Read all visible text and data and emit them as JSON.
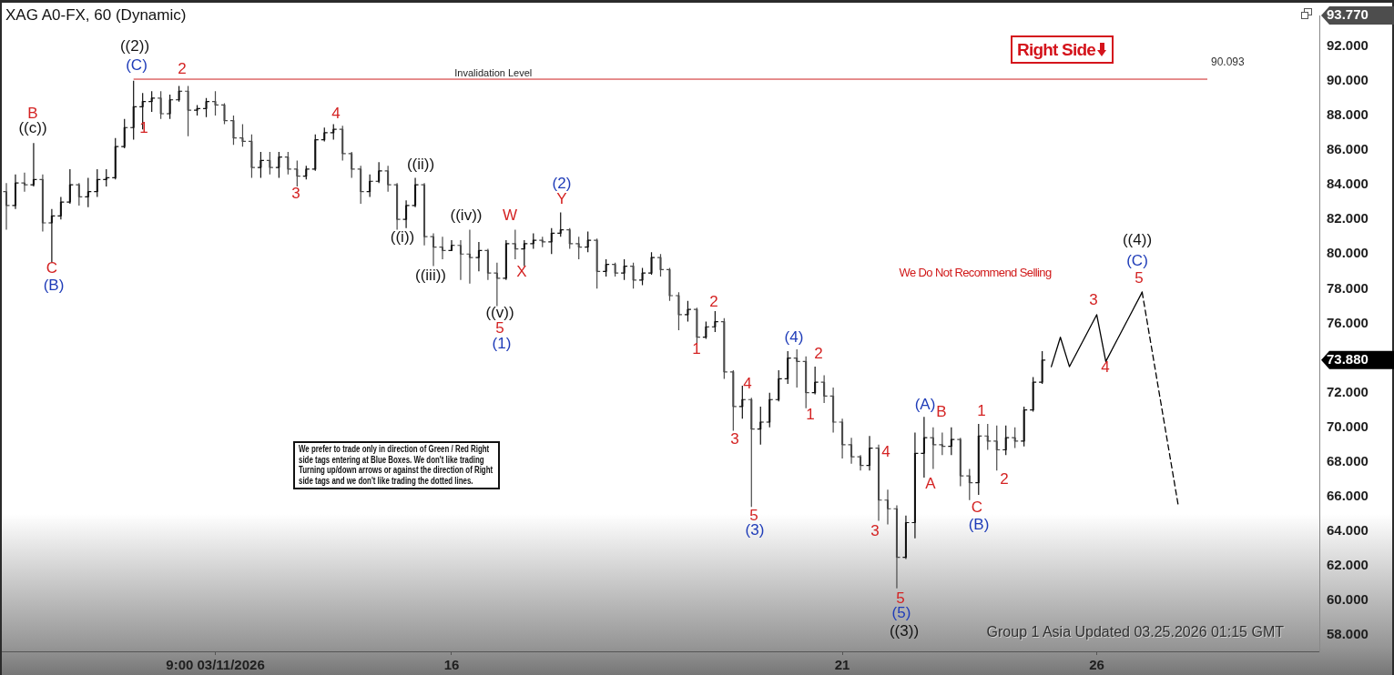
{
  "chart_data": {
    "type": "candlestick",
    "title": "XAG A0-FX, 60 (Dynamic)",
    "categories": [
      null,
      null,
      null,
      null,
      null,
      null,
      null,
      null,
      null,
      null,
      null,
      null,
      null,
      null,
      null,
      null,
      null,
      null,
      null,
      null,
      null,
      null,
      null,
      "9:00 03/11/2026",
      null,
      null,
      null,
      null,
      null,
      null,
      null,
      null,
      null,
      null,
      null,
      null,
      null,
      null,
      null,
      null,
      null,
      null,
      null,
      null,
      null,
      null,
      null,
      null,
      null,
      "16",
      null,
      null,
      null,
      null,
      null,
      null,
      null,
      null,
      null,
      null,
      null,
      null,
      null,
      null,
      null,
      null,
      null,
      null,
      null,
      null,
      null,
      null,
      null,
      null,
      null,
      null,
      null,
      null,
      null,
      null,
      null,
      null,
      null,
      null,
      null,
      null,
      null,
      null,
      null,
      null,
      null,
      null,
      "21",
      null,
      null,
      null,
      null,
      null,
      null,
      null,
      null,
      null,
      null,
      null,
      null,
      null,
      null,
      null,
      null,
      null,
      null,
      null,
      null,
      null,
      null,
      null,
      null,
      null,
      null,
      null,
      "26",
      null,
      null,
      null,
      null,
      null,
      null,
      null,
      null,
      null,
      null,
      null,
      null,
      null,
      null,
      null,
      null,
      null,
      null,
      null,
      null,
      null,
      null,
      null,
      null
    ],
    "ohlc": [
      [
        83.6,
        84.1,
        81.4,
        82.8
      ],
      [
        82.8,
        84.6,
        82.6,
        84.1
      ],
      [
        84.1,
        84.7,
        83.6,
        84.0
      ],
      [
        84.0,
        86.4,
        83.9,
        84.3
      ],
      [
        84.3,
        84.6,
        81.3,
        81.8
      ],
      [
        81.8,
        82.6,
        79.5,
        82.2
      ],
      [
        82.2,
        83.3,
        82.0,
        83.0
      ],
      [
        83.0,
        84.9,
        82.9,
        84.0
      ],
      [
        84.0,
        84.1,
        82.8,
        83.3
      ],
      [
        83.3,
        84.4,
        82.7,
        83.6
      ],
      [
        83.6,
        84.9,
        83.3,
        84.3
      ],
      [
        84.3,
        84.9,
        83.9,
        84.4
      ],
      [
        84.4,
        86.7,
        84.3,
        86.2
      ],
      [
        86.2,
        87.8,
        86.1,
        87.3
      ],
      [
        87.3,
        90.0,
        86.6,
        88.5
      ],
      [
        88.5,
        89.3,
        87.2,
        88.8
      ],
      [
        88.8,
        89.4,
        88.2,
        89.0
      ],
      [
        89.0,
        89.4,
        87.8,
        88.1
      ],
      [
        88.1,
        89.2,
        87.8,
        88.9
      ],
      [
        88.9,
        89.7,
        88.8,
        89.4
      ],
      [
        89.4,
        89.7,
        86.8,
        88.3
      ],
      [
        88.3,
        88.6,
        88.0,
        88.4
      ],
      [
        88.4,
        89.0,
        87.9,
        88.8
      ],
      [
        88.8,
        89.4,
        88.0,
        88.6
      ],
      [
        88.6,
        88.7,
        87.5,
        87.7
      ],
      [
        87.7,
        88.0,
        86.3,
        86.7
      ],
      [
        86.7,
        87.5,
        86.2,
        86.5
      ],
      [
        86.5,
        86.9,
        84.4,
        85.0
      ],
      [
        85.0,
        85.9,
        84.4,
        85.4
      ],
      [
        85.4,
        85.9,
        84.6,
        85.0
      ],
      [
        85.0,
        85.9,
        84.4,
        85.6
      ],
      [
        85.6,
        85.9,
        84.6,
        84.9
      ],
      [
        84.9,
        85.4,
        83.9,
        84.5
      ],
      [
        84.5,
        85.1,
        84.3,
        84.9
      ],
      [
        84.9,
        86.9,
        84.8,
        86.6
      ],
      [
        86.6,
        87.3,
        86.5,
        87.0
      ],
      [
        87.0,
        87.5,
        86.6,
        87.2
      ],
      [
        87.2,
        87.4,
        85.4,
        85.8
      ],
      [
        85.8,
        85.9,
        84.4,
        84.9
      ],
      [
        84.9,
        85.1,
        82.9,
        83.6
      ],
      [
        83.6,
        84.6,
        83.3,
        84.2
      ],
      [
        84.2,
        85.3,
        84.1,
        84.8
      ],
      [
        84.8,
        85.1,
        83.6,
        84.0
      ],
      [
        84.0,
        84.1,
        81.4,
        82.0
      ],
      [
        82.0,
        83.1,
        81.5,
        82.8
      ],
      [
        82.8,
        84.4,
        82.7,
        84.0
      ],
      [
        84.0,
        84.1,
        80.5,
        81.0
      ],
      [
        81.0,
        81.2,
        79.3,
        80.4
      ],
      [
        80.4,
        81.0,
        79.7,
        80.2
      ],
      [
        80.2,
        80.8,
        80.2,
        80.5
      ],
      [
        80.5,
        80.8,
        78.5,
        80.0
      ],
      [
        80.0,
        81.4,
        78.3,
        79.8
      ],
      [
        79.8,
        80.7,
        79.0,
        80.2
      ],
      [
        80.2,
        80.3,
        78.5,
        78.9
      ],
      [
        78.9,
        79.5,
        77.0,
        78.6
      ],
      [
        78.6,
        80.8,
        78.5,
        80.6
      ],
      [
        80.6,
        81.4,
        79.7,
        80.3
      ],
      [
        80.3,
        80.8,
        79.3,
        80.6
      ],
      [
        80.6,
        81.2,
        80.3,
        80.8
      ],
      [
        80.8,
        81.0,
        80.4,
        80.7
      ],
      [
        80.7,
        81.5,
        80.0,
        81.2
      ],
      [
        81.2,
        82.4,
        81.0,
        81.4
      ],
      [
        81.4,
        81.5,
        80.3,
        80.6
      ],
      [
        80.6,
        81.0,
        79.7,
        80.4
      ],
      [
        80.4,
        81.3,
        80.1,
        80.8
      ],
      [
        80.8,
        80.9,
        78.0,
        79.0
      ],
      [
        79.0,
        79.7,
        78.7,
        79.4
      ],
      [
        79.4,
        79.5,
        78.7,
        78.9
      ],
      [
        78.9,
        79.7,
        78.5,
        79.3
      ],
      [
        79.3,
        79.5,
        78.0,
        78.5
      ],
      [
        78.5,
        79.2,
        78.2,
        78.9
      ],
      [
        78.9,
        80.1,
        78.8,
        79.8
      ],
      [
        79.8,
        80.0,
        78.7,
        79.1
      ],
      [
        79.1,
        79.2,
        77.3,
        77.6
      ],
      [
        77.6,
        77.8,
        75.6,
        76.5
      ],
      [
        76.5,
        77.3,
        76.1,
        76.8
      ],
      [
        76.8,
        76.9,
        74.8,
        75.2
      ],
      [
        75.2,
        76.1,
        75.1,
        75.8
      ],
      [
        75.8,
        76.7,
        75.5,
        76.1
      ],
      [
        76.1,
        76.3,
        72.8,
        73.2
      ],
      [
        73.2,
        73.3,
        69.8,
        71.2
      ],
      [
        71.2,
        72.4,
        70.5,
        71.6
      ],
      [
        71.6,
        71.7,
        65.4,
        69.9
      ],
      [
        69.9,
        71.2,
        69.0,
        70.3
      ],
      [
        70.3,
        72.0,
        70.0,
        71.6
      ],
      [
        71.6,
        73.3,
        71.5,
        72.8
      ],
      [
        72.8,
        74.4,
        72.5,
        74.0
      ],
      [
        74.0,
        74.5,
        72.3,
        73.8
      ],
      [
        73.8,
        74.1,
        71.1,
        72.0
      ],
      [
        72.0,
        73.5,
        71.9,
        72.6
      ],
      [
        72.6,
        73.0,
        71.4,
        71.8
      ],
      [
        71.8,
        72.3,
        69.7,
        70.3
      ],
      [
        70.3,
        70.5,
        68.2,
        69.0
      ],
      [
        69.0,
        69.4,
        67.9,
        68.3
      ],
      [
        68.3,
        68.4,
        67.5,
        67.8
      ],
      [
        67.8,
        69.5,
        67.5,
        68.8
      ],
      [
        68.8,
        69.0,
        64.6,
        65.8
      ],
      [
        65.8,
        66.4,
        64.4,
        65.3
      ],
      [
        65.3,
        65.5,
        60.7,
        62.5
      ],
      [
        62.5,
        64.9,
        62.4,
        64.5
      ],
      [
        64.5,
        69.7,
        63.6,
        68.5
      ],
      [
        68.5,
        70.6,
        67.1,
        69.4
      ],
      [
        69.4,
        70.0,
        67.6,
        69.0
      ],
      [
        69.0,
        69.7,
        68.4,
        68.9
      ],
      [
        68.9,
        70.0,
        68.4,
        69.3
      ],
      [
        69.3,
        69.4,
        66.6,
        67.2
      ],
      [
        67.2,
        67.6,
        65.8,
        66.8
      ],
      [
        66.8,
        70.2,
        66.1,
        69.5
      ],
      [
        69.5,
        70.2,
        68.7,
        69.2
      ],
      [
        69.2,
        70.1,
        67.5,
        68.7
      ],
      [
        68.7,
        70.1,
        68.4,
        69.4
      ],
      [
        69.4,
        70.0,
        68.8,
        69.2
      ],
      [
        69.2,
        71.2,
        68.9,
        71.0
      ],
      [
        71.0,
        72.9,
        70.9,
        72.6
      ],
      [
        72.6,
        74.4,
        72.5,
        73.88
      ],
      null,
      null,
      null,
      null,
      null,
      null,
      null,
      null,
      null,
      null,
      null,
      null,
      null,
      null,
      null,
      null,
      null,
      null,
      null,
      null,
      null,
      null,
      null,
      null,
      null,
      null,
      null,
      null,
      null,
      null
    ],
    "colors": [
      "#4a4a4a",
      "#111111",
      "#4a4a4a",
      "#111111",
      "#4a4a4a",
      "#111111",
      "#111111",
      "#111111",
      "#4a4a4a",
      "#111111",
      "#111111",
      "#111111",
      "#111111",
      "#111111",
      "#111111",
      "#111111",
      "#111111",
      "#4a4a4a",
      "#111111",
      "#111111",
      "#4a4a4a",
      "#111111",
      "#111111",
      "#4a4a4a",
      "#4a4a4a",
      "#4a4a4a",
      "#4a4a4a",
      "#4a4a4a",
      "#111111",
      "#4a4a4a",
      "#111111",
      "#4a4a4a",
      "#4a4a4a",
      "#111111",
      "#111111",
      "#111111",
      "#111111",
      "#4a4a4a",
      "#4a4a4a",
      "#4a4a4a",
      "#111111",
      "#111111",
      "#4a4a4a",
      "#4a4a4a",
      "#111111",
      "#111111",
      "#4a4a4a",
      "#4a4a4a",
      "#4a4a4a",
      "#111111",
      "#4a4a4a",
      "#4a4a4a",
      "#111111",
      "#4a4a4a",
      "#4a4a4a",
      "#111111",
      "#4a4a4a",
      "#111111",
      "#111111",
      "#4a4a4a",
      "#111111",
      "#111111",
      "#4a4a4a",
      "#4a4a4a",
      "#111111",
      "#4a4a4a",
      "#111111",
      "#4a4a4a",
      "#111111",
      "#4a4a4a",
      "#111111",
      "#111111",
      "#4a4a4a",
      "#4a4a4a",
      "#4a4a4a",
      "#111111",
      "#4a4a4a",
      "#111111",
      "#111111",
      "#4a4a4a",
      "#4a4a4a",
      "#111111",
      "#4a4a4a",
      "#111111",
      "#111111",
      "#111111",
      "#111111",
      "#4a4a4a",
      "#4a4a4a",
      "#111111",
      "#4a4a4a",
      "#4a4a4a",
      "#4a4a4a",
      "#4a4a4a",
      "#4a4a4a",
      "#111111",
      "#4a4a4a",
      "#4a4a4a",
      "#4a4a4a",
      "#111111",
      "#111111",
      "#111111",
      "#4a4a4a",
      "#4a4a4a",
      "#111111",
      "#4a4a4a",
      "#4a4a4a",
      "#111111",
      "#4a4a4a",
      "#4a4a4a",
      "#111111",
      "#4a4a4a",
      "#111111",
      "#111111",
      "#111111",
      null,
      null,
      null,
      null,
      null,
      null,
      null,
      null,
      null,
      null,
      null,
      null,
      null,
      null,
      null,
      null,
      null,
      null,
      null,
      null,
      null,
      null,
      null,
      null,
      null,
      null,
      null,
      null,
      null,
      null
    ],
    "series": [
      {
        "type": "line",
        "color": "#000000",
        "line_style": "solid",
        "values": [
          null,
          null,
          null,
          null,
          null,
          null,
          null,
          null,
          null,
          null,
          null,
          null,
          null,
          null,
          null,
          null,
          null,
          null,
          null,
          null,
          null,
          null,
          null,
          null,
          null,
          null,
          null,
          null,
          null,
          null,
          null,
          null,
          null,
          null,
          null,
          null,
          null,
          null,
          null,
          null,
          null,
          null,
          null,
          null,
          null,
          null,
          null,
          null,
          null,
          null,
          null,
          null,
          null,
          null,
          null,
          null,
          null,
          null,
          null,
          null,
          null,
          null,
          null,
          null,
          null,
          null,
          null,
          null,
          null,
          null,
          null,
          null,
          null,
          null,
          null,
          null,
          null,
          null,
          null,
          null,
          null,
          null,
          null,
          null,
          null,
          null,
          null,
          null,
          null,
          null,
          null,
          null,
          null,
          null,
          null,
          null,
          null,
          null,
          null,
          null,
          null,
          null,
          null,
          null,
          null,
          null,
          null,
          null,
          null,
          null,
          null,
          null,
          null,
          null,
          null,
          73.5,
          75.2,
          73.5,
          74.5,
          75.5,
          76.5,
          73.8,
          74.8,
          75.8,
          76.8,
          77.8,
          null,
          null,
          null,
          null,
          null,
          null,
          null,
          null,
          null,
          null,
          null,
          null,
          null,
          null,
          null,
          null,
          null,
          null,
          null
        ]
      },
      {
        "type": "line",
        "color": "#000000",
        "line_style": "dashed",
        "values": [
          null,
          null,
          null,
          null,
          null,
          null,
          null,
          null,
          null,
          null,
          null,
          null,
          null,
          null,
          null,
          null,
          null,
          null,
          null,
          null,
          null,
          null,
          null,
          null,
          null,
          null,
          null,
          null,
          null,
          null,
          null,
          null,
          null,
          null,
          null,
          null,
          null,
          null,
          null,
          null,
          null,
          null,
          null,
          null,
          null,
          null,
          null,
          null,
          null,
          null,
          null,
          null,
          null,
          null,
          null,
          null,
          null,
          null,
          null,
          null,
          null,
          null,
          null,
          null,
          null,
          null,
          null,
          null,
          null,
          null,
          null,
          null,
          null,
          null,
          null,
          null,
          null,
          null,
          null,
          null,
          null,
          null,
          null,
          null,
          null,
          null,
          null,
          null,
          null,
          null,
          null,
          null,
          null,
          null,
          null,
          null,
          null,
          null,
          null,
          null,
          null,
          null,
          null,
          null,
          null,
          null,
          null,
          null,
          null,
          null,
          null,
          null,
          null,
          null,
          null,
          null,
          null,
          null,
          null,
          null,
          null,
          null,
          null,
          null,
          null,
          77.8,
          74.7,
          71.6,
          68.5,
          65.4,
          null,
          null,
          null,
          null,
          null,
          null,
          null,
          null,
          null,
          null,
          null,
          null,
          null,
          null,
          null
        ]
      }
    ],
    "ylim": [
      57.07,
      93.77
    ],
    "yticks": [
      {
        "value": 58,
        "label": "58.000"
      },
      {
        "value": 60,
        "label": "60.000"
      },
      {
        "value": 62,
        "label": "62.000"
      },
      {
        "value": 64,
        "label": "64.000"
      },
      {
        "value": 66,
        "label": "66.000"
      },
      {
        "value": 68,
        "label": "68.000"
      },
      {
        "value": 70,
        "label": "70.000"
      },
      {
        "value": 72,
        "label": "72.000"
      },
      {
        "value": 73.88,
        "label": "73.880"
      },
      {
        "value": 76,
        "label": "76.000"
      },
      {
        "value": 78,
        "label": "78.000"
      },
      {
        "value": 80,
        "label": "80.000"
      },
      {
        "value": 82,
        "label": "82.000"
      },
      {
        "value": 84,
        "label": "84.000"
      },
      {
        "value": 86,
        "label": "86.000"
      },
      {
        "value": 88,
        "label": "88.000"
      },
      {
        "value": 90,
        "label": "90.000"
      },
      {
        "value": 92,
        "label": "92.000"
      },
      {
        "value": 93.77,
        "label": "93.770"
      }
    ],
    "ref_lines": [
      {
        "axis": "y",
        "value": 90.093,
        "label": "Invalidation Level",
        "color": "#cc1f1f"
      }
    ],
    "annotations": [
      "Right Side",
      "We Do Not Recommend Selling",
      "We prefer to trade only in direction of Green / Red Right side tags entering at Blue Boxes. We don't like trading Turning up/down arrows or against the direction of Right side tags and we don't like trading the dotted lines.",
      "Group 1 Asia Updated 03.25.2026 01:15 GMT",
      "90.093",
      "((2))",
      "(C)",
      "2",
      "1",
      "B",
      "((c))",
      "C",
      "(B)",
      "4",
      "3",
      "((ii))",
      "((i))",
      "((iv))",
      "((iii))",
      "W",
      "X",
      "((v))",
      "5",
      "(1)",
      "(2)",
      "Y",
      "2",
      "1",
      "4",
      "3",
      "5",
      "(3)",
      "(4)",
      "2",
      "1",
      "4",
      "3",
      "5",
      "(5)",
      "((3))",
      "(A)",
      "B",
      "A",
      "1",
      "C",
      "(B)",
      "2",
      "3",
      "4",
      "5",
      "(C)",
      "((4))"
    ]
  }
}
